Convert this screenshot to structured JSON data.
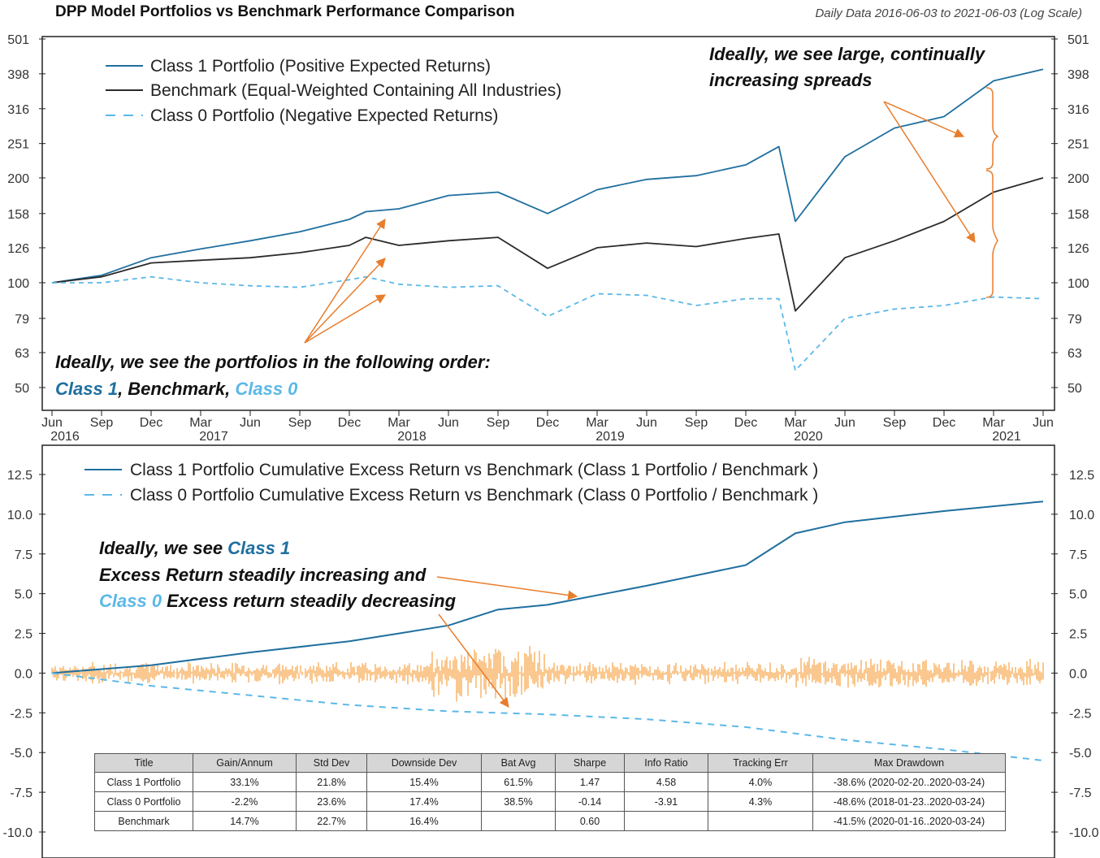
{
  "header": {
    "title": "DPP Model Portfolios vs Benchmark Performance Comparison",
    "subtitle": "Daily Data 2016-06-03 to 2021-06-03 (Log Scale)"
  },
  "colors": {
    "class1": "#1f6f9f",
    "benchmark": "#2b2b2b",
    "class0": "#5bb8e8",
    "excess": "#f5901e",
    "annotation": "#e87d2c"
  },
  "chart_data": [
    {
      "type": "line",
      "scale": "log",
      "yticks": [
        "501",
        "398",
        "316",
        "251",
        "200",
        "158",
        "126",
        "100",
        "79",
        "63",
        "50"
      ],
      "ylim": [
        50,
        501
      ],
      "xticks": [
        {
          "month": "Jun",
          "year": "2016"
        },
        {
          "month": "Sep",
          "year": ""
        },
        {
          "month": "Dec",
          "year": ""
        },
        {
          "month": "Mar",
          "year": "2017"
        },
        {
          "month": "Jun",
          "year": ""
        },
        {
          "month": "Sep",
          "year": ""
        },
        {
          "month": "Dec",
          "year": ""
        },
        {
          "month": "Mar",
          "year": "2018"
        },
        {
          "month": "Jun",
          "year": ""
        },
        {
          "month": "Sep",
          "year": ""
        },
        {
          "month": "Dec",
          "year": ""
        },
        {
          "month": "Mar",
          "year": "2019"
        },
        {
          "month": "Jun",
          "year": ""
        },
        {
          "month": "Sep",
          "year": ""
        },
        {
          "month": "Dec",
          "year": ""
        },
        {
          "month": "Mar",
          "year": "2020"
        },
        {
          "month": "Jun",
          "year": ""
        },
        {
          "month": "Sep",
          "year": ""
        },
        {
          "month": "Dec",
          "year": ""
        },
        {
          "month": "Mar",
          "year": "2021"
        },
        {
          "month": "Jun",
          "year": ""
        }
      ],
      "series": [
        {
          "name": "Class 1 Portfolio (Positive Expected Returns)",
          "style": "solid",
          "x": [
            "2016-06",
            "2016-09",
            "2016-12",
            "2017-03",
            "2017-06",
            "2017-09",
            "2017-12",
            "2018-01",
            "2018-03",
            "2018-06",
            "2018-09",
            "2018-12",
            "2019-03",
            "2019-06",
            "2019-09",
            "2019-12",
            "2020-02",
            "2020-03",
            "2020-06",
            "2020-09",
            "2020-12",
            "2021-03",
            "2021-06"
          ],
          "y": [
            100,
            105,
            118,
            125,
            132,
            140,
            152,
            160,
            163,
            178,
            182,
            158,
            185,
            198,
            203,
            218,
            246,
            150,
            230,
            278,
            300,
            380,
            410
          ]
        },
        {
          "name": "Benchmark (Equal-Weighted Containing All Industries)",
          "style": "solid",
          "x": [
            "2016-06",
            "2016-09",
            "2016-12",
            "2017-03",
            "2017-06",
            "2017-09",
            "2017-12",
            "2018-01",
            "2018-03",
            "2018-06",
            "2018-09",
            "2018-12",
            "2019-03",
            "2019-06",
            "2019-09",
            "2019-12",
            "2020-02",
            "2020-03",
            "2020-06",
            "2020-09",
            "2020-12",
            "2021-03",
            "2021-06"
          ],
          "y": [
            100,
            104,
            114,
            116,
            118,
            122,
            128,
            135,
            128,
            132,
            135,
            110,
            126,
            130,
            127,
            134,
            138,
            83,
            118,
            132,
            150,
            182,
            200
          ]
        },
        {
          "name": "Class 0 Portfolio (Negative Expected Returns)",
          "style": "dashed",
          "x": [
            "2016-06",
            "2016-09",
            "2016-12",
            "2017-03",
            "2017-06",
            "2017-09",
            "2017-12",
            "2018-01",
            "2018-03",
            "2018-06",
            "2018-09",
            "2018-12",
            "2019-03",
            "2019-06",
            "2019-09",
            "2019-12",
            "2020-02",
            "2020-03",
            "2020-06",
            "2020-09",
            "2020-12",
            "2021-03",
            "2021-06"
          ],
          "y": [
            100,
            100,
            104,
            100,
            98,
            97,
            102,
            104,
            99,
            97,
            98,
            80,
            93,
            92,
            86,
            90,
            90,
            56,
            79,
            84,
            86,
            91,
            90
          ]
        }
      ]
    },
    {
      "type": "line",
      "yticks": [
        "12.5",
        "10.0",
        "7.5",
        "5.0",
        "2.5",
        "0.0",
        "-2.5",
        "-5.0",
        "-7.5",
        "-10.0"
      ],
      "ylim": [
        -10,
        12.5
      ],
      "series": [
        {
          "name": "Class 1 Portfolio Cumulative Excess Return vs Benchmark (Class 1 Portfolio / Benchmark )",
          "style": "solid",
          "x": [
            "2016-06",
            "2016-12",
            "2017-06",
            "2017-12",
            "2018-03",
            "2018-06",
            "2018-09",
            "2018-12",
            "2019-06",
            "2019-12",
            "2020-03",
            "2020-06",
            "2020-12",
            "2021-06"
          ],
          "y": [
            0,
            0.5,
            1.3,
            2.0,
            2.5,
            3.0,
            4.0,
            4.3,
            5.5,
            6.8,
            8.8,
            9.5,
            10.2,
            10.8
          ]
        },
        {
          "name": "Class 0 Portfolio Cumulative Excess Return vs Benchmark (Class 0 Portfolio / Benchmark )",
          "style": "dashed",
          "x": [
            "2016-06",
            "2016-12",
            "2017-06",
            "2017-12",
            "2018-06",
            "2018-12",
            "2019-06",
            "2019-12",
            "2020-06",
            "2020-12",
            "2021-06"
          ],
          "y": [
            0,
            -0.8,
            -1.4,
            -2.0,
            -2.4,
            -2.6,
            -2.9,
            -3.4,
            -4.2,
            -4.8,
            -5.5
          ]
        }
      ]
    }
  ],
  "annotations": {
    "top_right": [
      "Ideally, we see large, continually",
      "increasing spreads"
    ],
    "top_left_line1": "Ideally, we see the portfolios in the following order:",
    "top_left_line2": {
      "class1": "Class 1",
      "sep1": ", Benchmark, ",
      "class0": "Class 0"
    },
    "bottom": {
      "l1_a": "Ideally, we see ",
      "l1_b": "Class 1",
      "l2": "Excess Return steadily increasing and",
      "l3_a": "Class 0",
      "l3_b": " Excess return steadily decreasing"
    }
  },
  "table": {
    "headers": [
      "Title",
      "Gain/Annum",
      "Std Dev",
      "Downside Dev",
      "Bat Avg",
      "Sharpe",
      "Info Ratio",
      "Tracking Err",
      "Max Drawdown"
    ],
    "rows": [
      [
        "Class 1 Portfolio",
        "33.1%",
        "21.8%",
        "15.4%",
        "61.5%",
        "1.47",
        "4.58",
        "4.0%",
        "-38.6% (2020-02-20..2020-03-24)"
      ],
      [
        "Class 0 Portfolio",
        "-2.2%",
        "23.6%",
        "17.4%",
        "38.5%",
        "-0.14",
        "-3.91",
        "4.3%",
        "-48.6% (2018-01-23..2020-03-24)"
      ],
      [
        "Benchmark",
        "14.7%",
        "22.7%",
        "16.4%",
        "",
        "0.60",
        "",
        "",
        "-41.5% (2020-01-16..2020-03-24)"
      ]
    ]
  }
}
